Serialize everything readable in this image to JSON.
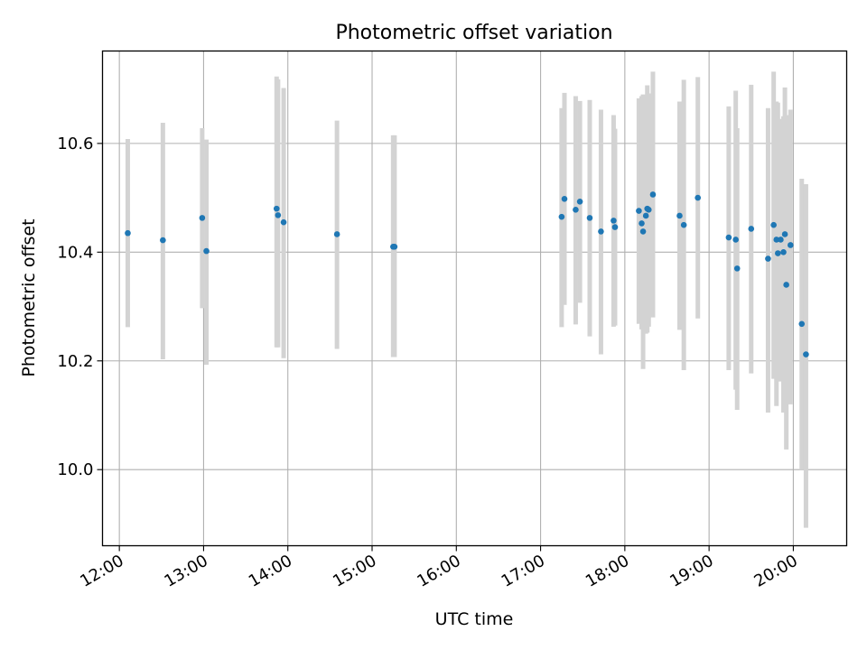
{
  "chart_data": {
    "type": "scatter",
    "title": "Photometric offset variation",
    "xlabel": "UTC time",
    "ylabel": "Photometric offset",
    "xlim": [
      "11:48",
      "20:38"
    ],
    "ylim": [
      9.86,
      10.77
    ],
    "grid": true,
    "xticks": [
      "12:00",
      "13:00",
      "14:00",
      "15:00",
      "16:00",
      "17:00",
      "18:00",
      "19:00",
      "20:00"
    ],
    "yticks": [
      "10.0",
      "10.2",
      "10.4",
      "10.6"
    ],
    "colors": {
      "points": "#1f77b4",
      "errorbars": "#d3d3d3",
      "grid": "#b0b0b0"
    },
    "series": [
      {
        "x": [
          "12:06",
          "12:31",
          "12:59",
          "13:02",
          "13:52",
          "13:53",
          "13:57",
          "14:35",
          "15:15",
          "15:16",
          "17:15",
          "17:17",
          "17:25",
          "17:28",
          "17:35",
          "17:43",
          "17:52",
          "17:53",
          "18:10",
          "18:12",
          "18:13",
          "18:15",
          "18:16",
          "18:17",
          "18:20",
          "18:39",
          "18:42",
          "18:52",
          "19:14",
          "19:19",
          "19:20",
          "19:30",
          "19:42",
          "19:46",
          "19:48",
          "19:49",
          "19:51",
          "19:53",
          "19:54",
          "19:55",
          "19:58",
          "20:06",
          "20:09"
        ],
        "y": [
          10.435,
          10.422,
          10.463,
          10.402,
          10.48,
          10.468,
          10.455,
          10.433,
          10.41,
          10.41,
          10.465,
          10.498,
          10.478,
          10.493,
          10.463,
          10.438,
          10.458,
          10.446,
          10.476,
          10.453,
          10.438,
          10.467,
          10.48,
          10.478,
          10.506,
          10.467,
          10.45,
          10.5,
          10.427,
          10.423,
          10.37,
          10.443,
          10.388,
          10.45,
          10.423,
          10.398,
          10.423,
          10.4,
          10.433,
          10.34,
          10.413,
          10.268,
          10.212
        ],
        "err_low": [
          10.262,
          10.203,
          10.297,
          10.193,
          10.225,
          10.225,
          10.205,
          10.222,
          10.207,
          10.207,
          10.262,
          10.303,
          10.267,
          10.307,
          10.245,
          10.212,
          10.263,
          10.265,
          10.268,
          10.258,
          10.185,
          10.25,
          10.252,
          10.263,
          10.28,
          10.257,
          10.183,
          10.278,
          10.183,
          10.147,
          10.11,
          10.177,
          10.105,
          10.167,
          10.117,
          10.165,
          10.162,
          10.105,
          10.163,
          10.037,
          10.12,
          10.0,
          9.893
        ],
        "err_high": [
          10.608,
          10.638,
          10.628,
          10.607,
          10.723,
          10.718,
          10.702,
          10.642,
          10.615,
          10.615,
          10.665,
          10.693,
          10.687,
          10.678,
          10.68,
          10.662,
          10.652,
          10.627,
          10.683,
          10.687,
          10.69,
          10.683,
          10.707,
          10.692,
          10.732,
          10.677,
          10.717,
          10.722,
          10.668,
          10.697,
          10.628,
          10.708,
          10.665,
          10.732,
          10.677,
          10.675,
          10.645,
          10.65,
          10.703,
          10.652,
          10.662,
          10.535,
          10.525
        ]
      }
    ]
  }
}
